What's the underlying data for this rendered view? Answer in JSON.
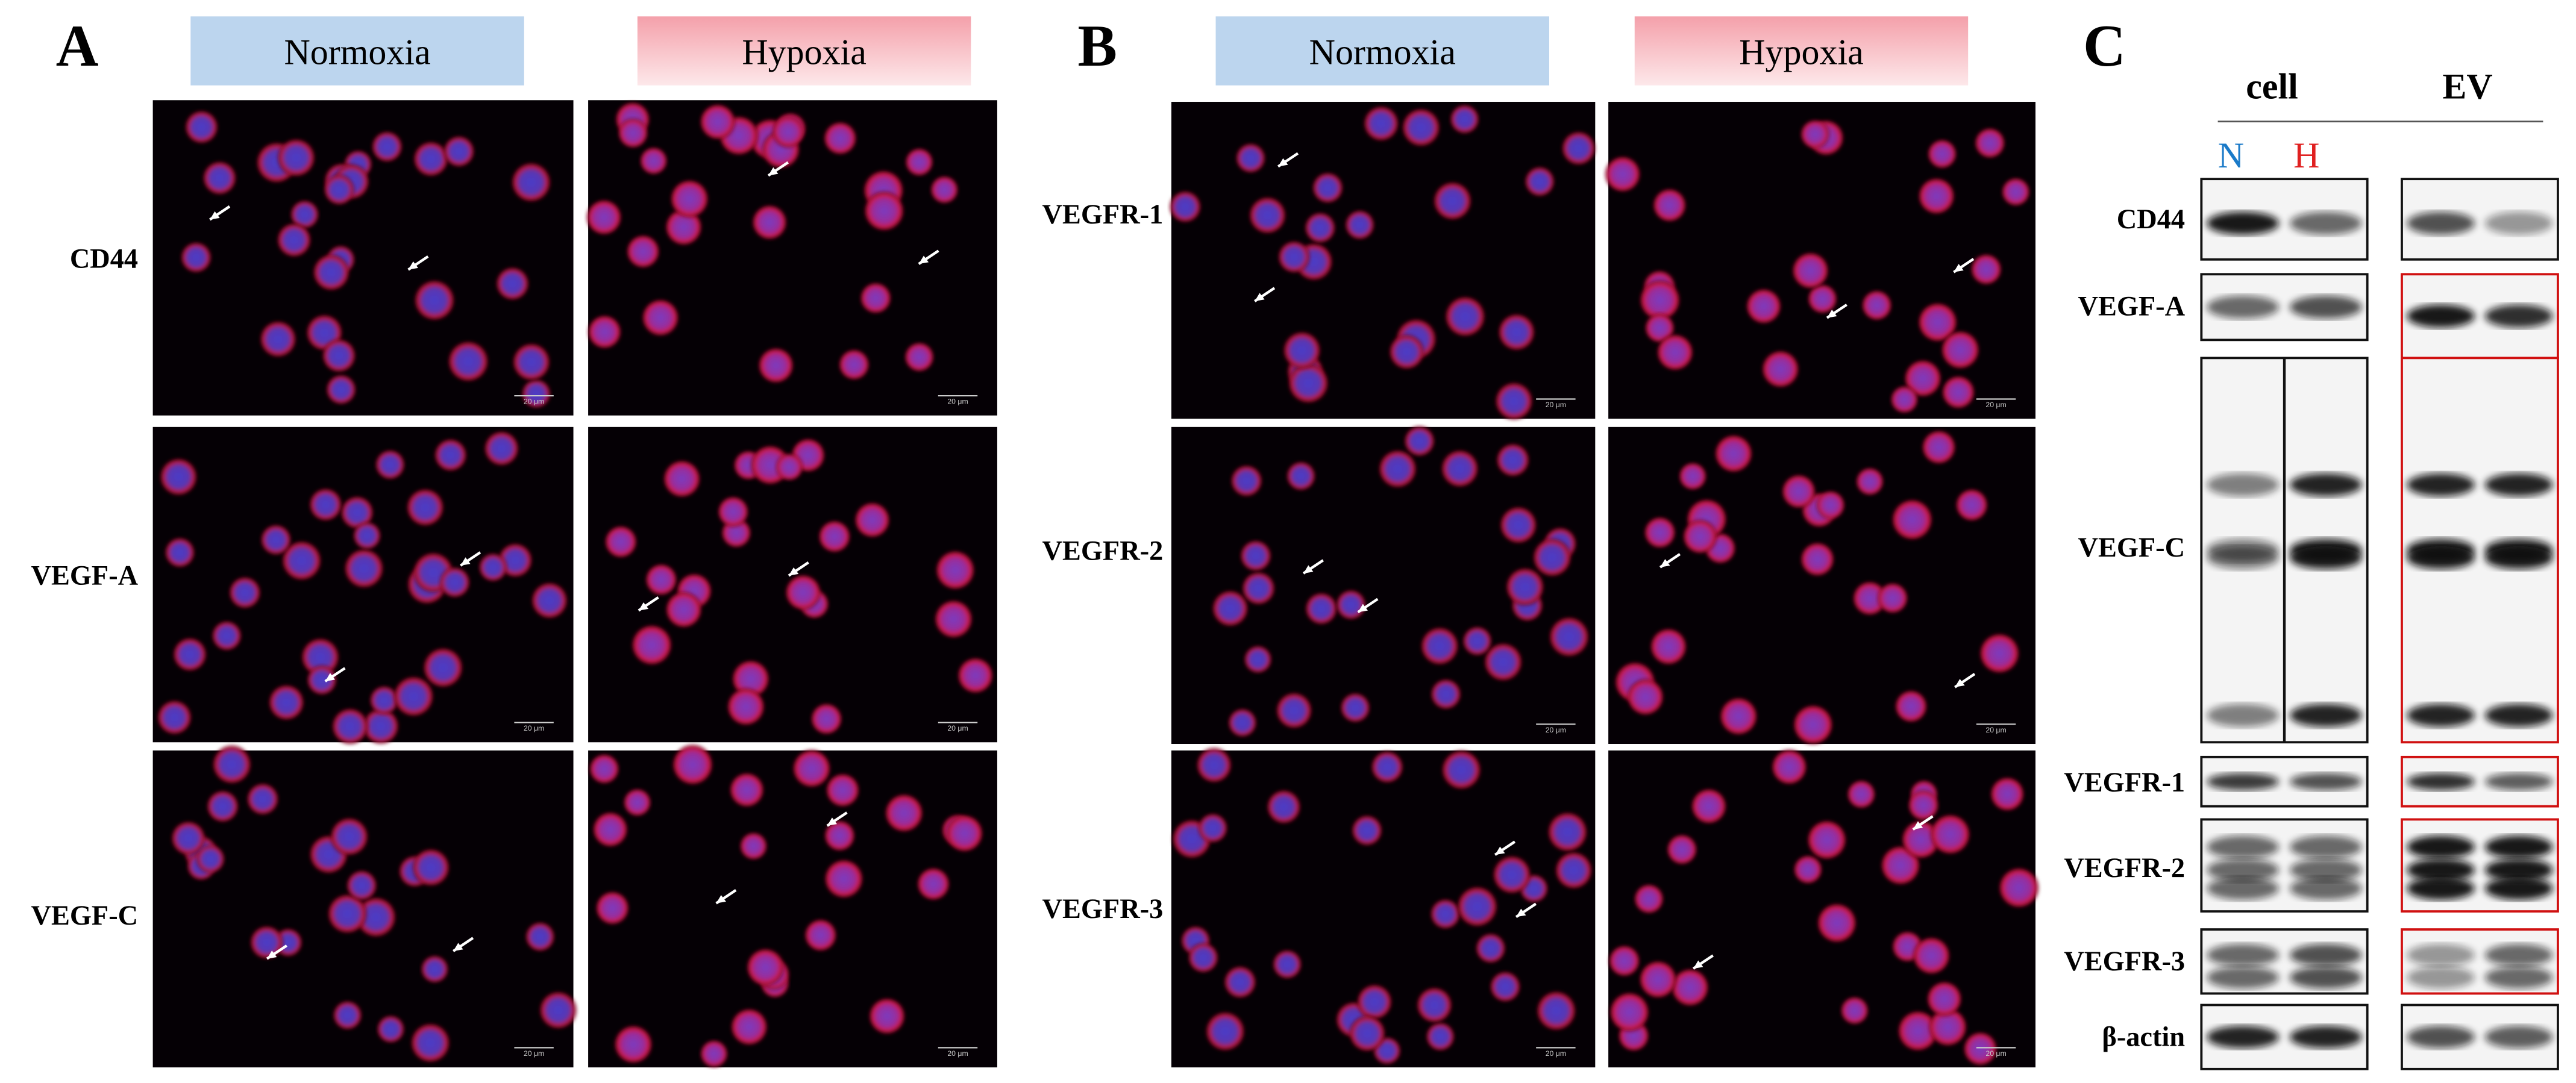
{
  "panels": {
    "A": {
      "label": "A",
      "columns": [
        "Normoxia",
        "Hypoxia"
      ],
      "rows": [
        "CD44",
        "VEGF-A",
        "VEGF-C"
      ]
    },
    "B": {
      "label": "B",
      "columns": [
        "Normoxia",
        "Hypoxia"
      ],
      "rows": [
        "VEGFR-1",
        "VEGFR-2",
        "VEGFR-3"
      ]
    },
    "C": {
      "label": "C",
      "groups": [
        "cell",
        "EV"
      ],
      "lanes": [
        "N",
        "H"
      ],
      "rows": [
        "CD44",
        "VEGF-A",
        "VEGF-C",
        "VEGFR-1",
        "VEGFR-2",
        "VEGFR-3",
        "β-actin"
      ]
    }
  },
  "scale_bar": "20 μm"
}
